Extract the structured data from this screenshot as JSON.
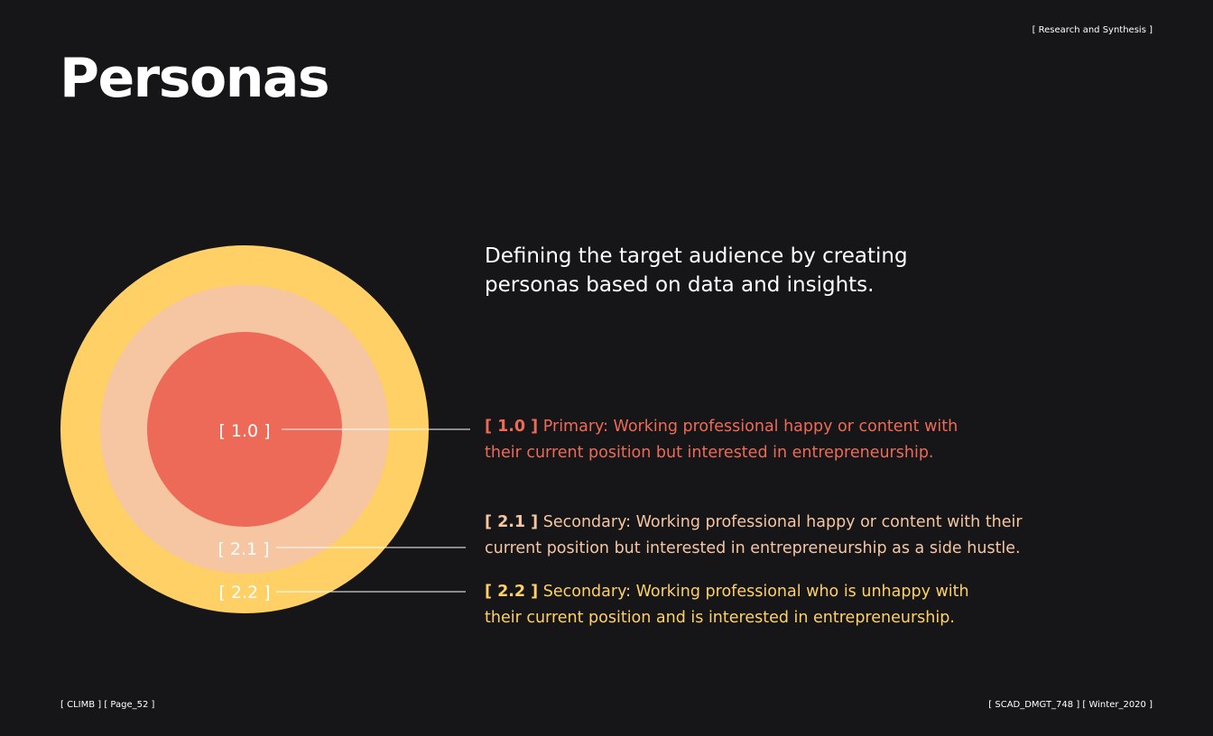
{
  "header": {
    "section_tag": "[ Research and Synthesis ]",
    "title": "Personas"
  },
  "intro": {
    "line1": "Defining the target audience by creating",
    "line2": "personas based on data and insights."
  },
  "diagram": {
    "rings": [
      {
        "label": "[ 1.0 ]",
        "color": "#ee6a58"
      },
      {
        "label": "[ 2.1 ]",
        "color": "#f6c5a1"
      },
      {
        "label": "[ 2.2 ]",
        "color": "#fed065"
      }
    ]
  },
  "personas": [
    {
      "code": "[ 1.0 ]",
      "line1": " Primary: Working professional happy or content with",
      "line2": "their current position but interested in entrepreneurship.",
      "color": "#ee6a58"
    },
    {
      "code": "[ 2.1 ]",
      "line1": " Secondary: Working professional happy or content with their",
      "line2": "current position but interested in entrepreneurship as a side hustle.",
      "color": "#f6c5a1"
    },
    {
      "code": "[ 2.2 ]",
      "line1": " Secondary: Working professional who is unhappy with",
      "line2": "their current position and is interested in entrepreneurship.",
      "color": "#fed065"
    }
  ],
  "footer": {
    "left": "[ CLIMB ] [ Page_52 ]",
    "right": "[ SCAD_DMGT_748 ] [ Winter_2020 ]"
  }
}
